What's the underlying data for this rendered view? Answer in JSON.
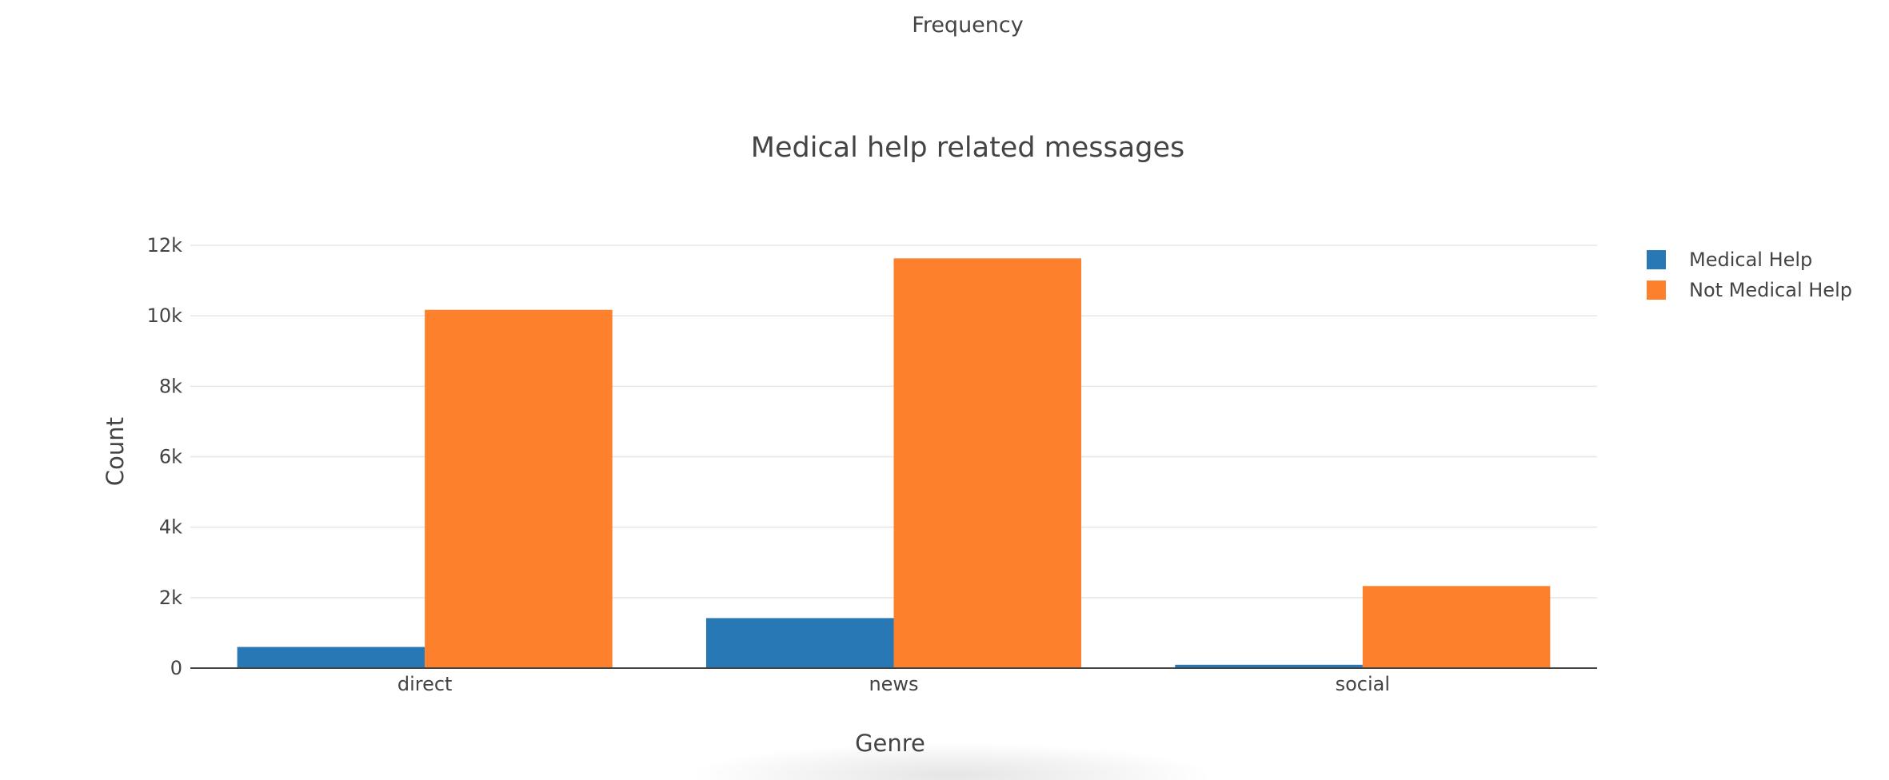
{
  "header": {
    "title": "Frequency"
  },
  "chart_data": {
    "type": "bar",
    "title": "Medical help related messages",
    "xlabel": "Genre",
    "ylabel": "Count",
    "categories": [
      "direct",
      "news",
      "social"
    ],
    "series": [
      {
        "name": "Medical Help",
        "color": "#2878b5",
        "values": [
          600,
          1420,
          95
        ]
      },
      {
        "name": "Not Medical Help",
        "color": "#fd812c",
        "values": [
          10170,
          11630,
          2330
        ]
      }
    ],
    "ylim": [
      0,
      12000
    ],
    "yticks": [
      0,
      2000,
      4000,
      6000,
      8000,
      10000,
      12000
    ],
    "ytick_labels": [
      "0",
      "2k",
      "4k",
      "6k",
      "8k",
      "10k",
      "12k"
    ],
    "grid": true,
    "legend_position": "top-right",
    "barmode": "group"
  }
}
